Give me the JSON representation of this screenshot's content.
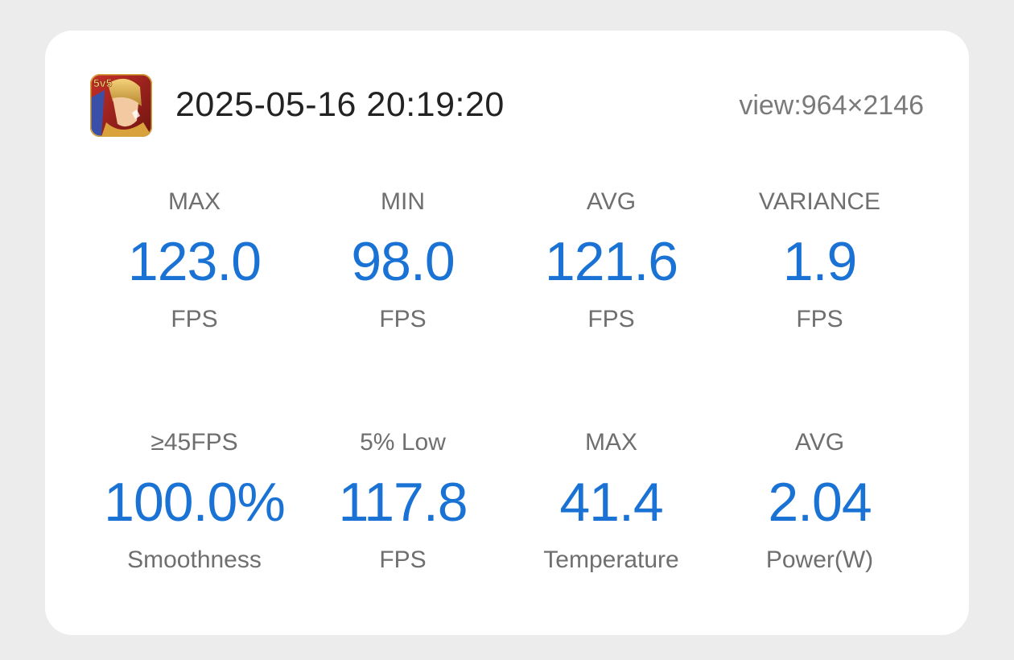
{
  "header": {
    "app_icon": "game-icon-5v5",
    "app_icon_text": "5v5",
    "timestamp": "2025-05-16 20:19:20",
    "viewport": "view:964×2146"
  },
  "metrics": [
    {
      "label": "MAX",
      "value": "123.0",
      "unit": "FPS"
    },
    {
      "label": "MIN",
      "value": "98.0",
      "unit": "FPS"
    },
    {
      "label": "AVG",
      "value": "121.6",
      "unit": "FPS"
    },
    {
      "label": "VARIANCE",
      "value": "1.9",
      "unit": "FPS"
    },
    {
      "label": "≥45FPS",
      "value": "100.0%",
      "unit": "Smoothness"
    },
    {
      "label": "5% Low",
      "value": "117.8",
      "unit": "FPS"
    },
    {
      "label": "MAX",
      "value": "41.4",
      "unit": "Temperature"
    },
    {
      "label": "AVG",
      "value": "2.04",
      "unit": "Power(W)"
    }
  ],
  "colors": {
    "accent": "#1a73d4",
    "label": "#6f6f6f",
    "background": "#ececec",
    "card": "#ffffff"
  }
}
